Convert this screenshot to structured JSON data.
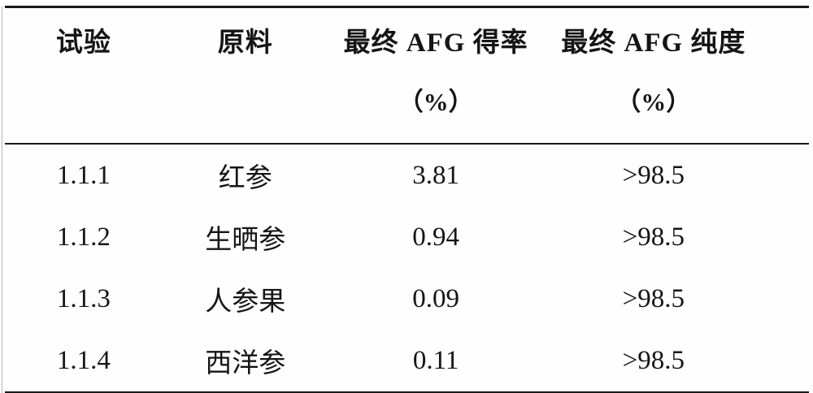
{
  "table": {
    "columns": [
      {
        "label_line1": "试验",
        "label_line2": ""
      },
      {
        "label_line1": "原料",
        "label_line2": ""
      },
      {
        "label_line1": "最终 AFG 得率",
        "label_line2": "（%）"
      },
      {
        "label_line1": "最终 AFG 纯度",
        "label_line2": "（%）"
      }
    ],
    "rows": [
      {
        "test": "1.1.1",
        "material": "红参",
        "yield": "3.81",
        "purity": ">98.5"
      },
      {
        "test": "1.1.2",
        "material": "生晒参",
        "yield": "0.94",
        "purity": ">98.5"
      },
      {
        "test": "1.1.3",
        "material": "人参果",
        "yield": "0.09",
        "purity": ">98.5"
      },
      {
        "test": "1.1.4",
        "material": "西洋参",
        "yield": "0.11",
        "purity": ">98.5"
      }
    ]
  },
  "colors": {
    "text": "#151515",
    "rule": "#1a1a1a",
    "background": "#fefefe"
  }
}
